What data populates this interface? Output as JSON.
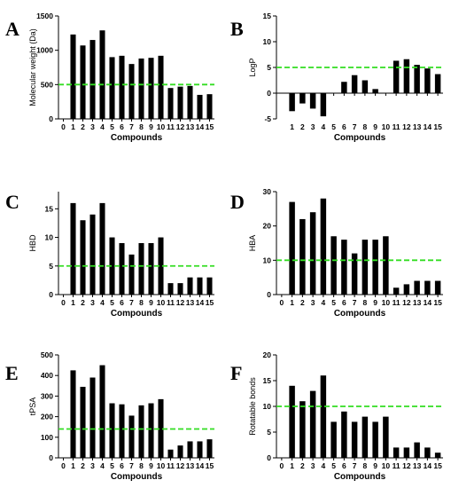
{
  "colors": {
    "bar": "#000000",
    "threshold": "#33dd22",
    "axis": "#000000"
  },
  "chart_data": [
    {
      "panel": "A",
      "type": "bar",
      "categories": [
        "1",
        "2",
        "3",
        "4",
        "5",
        "6",
        "7",
        "8",
        "9",
        "10",
        "11",
        "12",
        "13",
        "14",
        "15"
      ],
      "values": [
        1230,
        1070,
        1150,
        1290,
        900,
        920,
        800,
        880,
        890,
        920,
        450,
        470,
        480,
        350,
        360
      ],
      "threshold": 500,
      "xlabel": "Compounds",
      "ylabel": "Molecular weight (Da)",
      "ylim": [
        0,
        1500
      ],
      "yticks": [
        0,
        500,
        1000,
        1500
      ],
      "xticks": [
        "0",
        "1",
        "2",
        "3",
        "4",
        "5",
        "6",
        "7",
        "8",
        "9",
        "10",
        "11",
        "12",
        "13",
        "14",
        "15"
      ],
      "xtick_position": "bottom"
    },
    {
      "panel": "B",
      "type": "bar",
      "categories": [
        "1",
        "2",
        "3",
        "4",
        "5",
        "6",
        "7",
        "8",
        "9",
        "10",
        "11",
        "12",
        "13",
        "14",
        "15"
      ],
      "values": [
        -3.5,
        -2.0,
        -3.0,
        -4.5,
        0,
        2.2,
        3.5,
        2.5,
        0.8,
        0,
        6.3,
        6.6,
        5.5,
        4.8,
        3.7
      ],
      "threshold": 5,
      "xlabel": "Compounds",
      "ylabel": "LogP",
      "ylim": [
        -5,
        15
      ],
      "yticks": [
        -5,
        0,
        5,
        10,
        15
      ],
      "xticks": [
        "1",
        "2",
        "3",
        "4",
        "5",
        "6",
        "7",
        "8",
        "9",
        "10",
        "11",
        "12",
        "13",
        "14",
        "15"
      ],
      "xtick_position": "below-axis"
    },
    {
      "panel": "C",
      "type": "bar",
      "categories": [
        "1",
        "2",
        "3",
        "4",
        "5",
        "6",
        "7",
        "8",
        "9",
        "10",
        "11",
        "12",
        "13",
        "14",
        "15"
      ],
      "values": [
        16,
        13,
        14,
        16,
        10,
        9,
        7,
        9,
        9,
        10,
        2,
        2,
        3,
        3,
        3
      ],
      "threshold": 5,
      "xlabel": "Compounds",
      "ylabel": "HBD",
      "ylim": [
        0,
        18
      ],
      "yticks": [
        0,
        5,
        10,
        15
      ],
      "xticks": [
        "0",
        "1",
        "2",
        "3",
        "4",
        "5",
        "6",
        "7",
        "8",
        "9",
        "10",
        "11",
        "12",
        "13",
        "14",
        "15"
      ],
      "xtick_position": "bottom"
    },
    {
      "panel": "D",
      "type": "bar",
      "categories": [
        "1",
        "2",
        "3",
        "4",
        "5",
        "6",
        "7",
        "8",
        "9",
        "10",
        "11",
        "12",
        "13",
        "14",
        "15"
      ],
      "values": [
        27,
        22,
        24,
        28,
        17,
        16,
        12,
        16,
        16,
        17,
        2,
        3,
        4,
        4,
        4
      ],
      "threshold": 10,
      "xlabel": "Compounds",
      "ylabel": "HBA",
      "ylim": [
        0,
        30
      ],
      "yticks": [
        0,
        10,
        20,
        30
      ],
      "xticks": [
        "0",
        "1",
        "2",
        "3",
        "4",
        "5",
        "6",
        "7",
        "8",
        "9",
        "10",
        "11",
        "12",
        "13",
        "14",
        "15"
      ],
      "xtick_position": "bottom"
    },
    {
      "panel": "E",
      "type": "bar",
      "categories": [
        "1",
        "2",
        "3",
        "4",
        "5",
        "6",
        "7",
        "8",
        "9",
        "10",
        "11",
        "12",
        "13",
        "14",
        "15"
      ],
      "values": [
        425,
        345,
        390,
        450,
        265,
        260,
        205,
        255,
        265,
        285,
        40,
        60,
        80,
        80,
        90
      ],
      "threshold": 140,
      "xlabel": "Compounds",
      "ylabel": "tPSA",
      "ylim": [
        0,
        500
      ],
      "yticks": [
        0,
        100,
        200,
        300,
        400,
        500
      ],
      "xticks": [
        "0",
        "1",
        "2",
        "3",
        "4",
        "5",
        "6",
        "7",
        "8",
        "9",
        "10",
        "11",
        "12",
        "13",
        "14",
        "15"
      ],
      "xtick_position": "bottom"
    },
    {
      "panel": "F",
      "type": "bar",
      "categories": [
        "1",
        "2",
        "3",
        "4",
        "5",
        "6",
        "7",
        "8",
        "9",
        "10",
        "11",
        "12",
        "13",
        "14",
        "15"
      ],
      "values": [
        14,
        11,
        13,
        16,
        7,
        9,
        7,
        8,
        7,
        8,
        2,
        2,
        3,
        2,
        1
      ],
      "threshold": 10,
      "xlabel": "Compounds",
      "ylabel": "Rotatable bonds",
      "ylim": [
        0,
        20
      ],
      "yticks": [
        0,
        5,
        10,
        15,
        20
      ],
      "xticks": [
        "0",
        "1",
        "2",
        "3",
        "4",
        "5",
        "6",
        "7",
        "8",
        "9",
        "10",
        "11",
        "12",
        "13",
        "14",
        "15"
      ],
      "xtick_position": "bottom"
    }
  ]
}
